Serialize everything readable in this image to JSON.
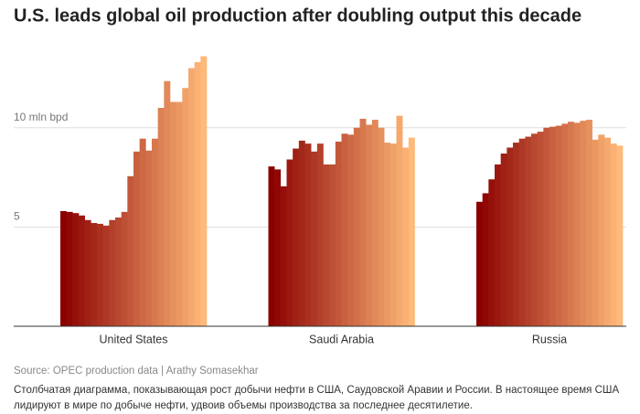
{
  "chart_data": {
    "type": "bar",
    "title": "U.S. leads global oil production after doubling output this decade",
    "groups": [
      {
        "name": "United States",
        "values": [
          5.8,
          5.76,
          5.7,
          5.58,
          5.35,
          5.2,
          5.16,
          5.07,
          5.35,
          5.48,
          5.76,
          7.56,
          8.8,
          9.45,
          8.85,
          9.45,
          11.0,
          12.35,
          11.3,
          11.3,
          12.0,
          13.0,
          13.3,
          13.6
        ]
      },
      {
        "name": "Saudi Arabia",
        "values": [
          8.05,
          7.9,
          7.05,
          8.4,
          8.95,
          9.35,
          9.2,
          8.8,
          9.2,
          8.15,
          8.15,
          9.3,
          9.7,
          9.65,
          10.0,
          10.45,
          10.15,
          10.4,
          10.0,
          9.25,
          9.2,
          10.6,
          9.0,
          9.5
        ]
      },
      {
        "name": "Russia",
        "values": [
          6.27,
          6.7,
          7.4,
          8.15,
          8.7,
          9.0,
          9.25,
          9.45,
          9.55,
          9.7,
          9.8,
          10.0,
          10.05,
          10.1,
          10.2,
          10.3,
          10.25,
          10.35,
          10.4,
          9.4,
          9.65,
          9.5,
          9.2,
          9.1
        ]
      }
    ],
    "gradient": [
      "#8b0000",
      "#ffb978"
    ],
    "ylim": [
      0,
      14.5
    ],
    "yticks": [
      {
        "value": 5,
        "label": "5"
      },
      {
        "value": 10,
        "label": "10 mln bpd"
      }
    ],
    "grid": true,
    "source": "Source: OPEC production data | Arathy Somasekhar",
    "caption": "Столбчатая диаграмма, показывающая рост добычи нефти в США, Саудовской Аравии и России. В настоящее время США лидируют в мире по добыче нефти, удвоив объемы производства за последнее десятилетие."
  }
}
